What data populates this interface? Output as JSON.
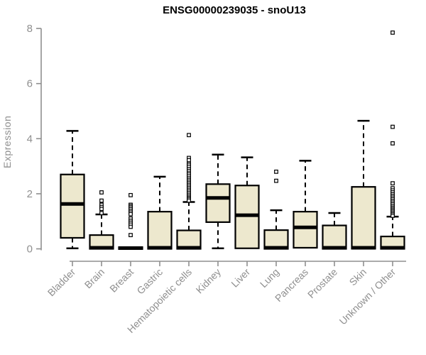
{
  "figure": {
    "title": "ENSG00000239035 - snoU13",
    "y_axis_label": "Expression"
  },
  "chart_data": {
    "type": "boxplot",
    "title": "ENSG00000239035 - snoU13",
    "xlabel": "",
    "ylabel": "Expression",
    "ylim": [
      0,
      8
    ],
    "y_ticks": [
      0,
      2,
      4,
      6,
      8
    ],
    "grid": false,
    "legend": "none",
    "box_fill_color": "#EDE8CE",
    "box_border_color": "#000000",
    "axis_color": "#8F8F8F",
    "categories": [
      "Bladder",
      "Brain",
      "Breast",
      "Gastric",
      "Hematopoietic cells",
      "Kidney",
      "Liver",
      "Lung",
      "Pancreas",
      "Prostate",
      "Skin",
      "Unknown / Other"
    ],
    "series": [
      {
        "name": "Bladder",
        "whisker_low": 0.02,
        "q1": 0.4,
        "median": 1.63,
        "q3": 2.7,
        "whisker_high": 4.28,
        "outliers": []
      },
      {
        "name": "Brain",
        "whisker_low": 0.0,
        "q1": 0.0,
        "median": 0.04,
        "q3": 0.5,
        "whisker_high": 1.25,
        "outliers": [
          2.05,
          1.75,
          1.6,
          1.52,
          1.45,
          1.3
        ]
      },
      {
        "name": "Breast",
        "whisker_low": 0.0,
        "q1": 0.0,
        "median": 0.03,
        "q3": 0.06,
        "whisker_high": 0.1,
        "outliers": [
          1.95,
          1.6,
          1.55,
          1.5,
          1.44,
          1.38,
          1.32,
          1.26,
          1.1,
          1.02,
          0.95,
          0.88,
          0.8,
          0.5
        ]
      },
      {
        "name": "Gastric",
        "whisker_low": 0.0,
        "q1": 0.0,
        "median": 0.04,
        "q3": 1.35,
        "whisker_high": 2.62,
        "outliers": []
      },
      {
        "name": "Hematopoietic cells",
        "whisker_low": 0.0,
        "q1": 0.0,
        "median": 0.04,
        "q3": 0.67,
        "whisker_high": 1.7,
        "outliers": [
          4.13,
          3.3,
          3.22,
          3.1,
          3.05,
          2.98,
          2.9,
          2.83,
          2.76,
          2.7,
          2.63,
          2.56,
          2.5,
          2.44,
          2.38,
          2.32,
          2.26,
          2.2,
          2.14,
          2.08,
          2.02,
          1.96,
          1.9,
          1.85,
          1.8,
          1.75
        ]
      },
      {
        "name": "Kidney",
        "whisker_low": 0.02,
        "q1": 0.97,
        "median": 1.85,
        "q3": 2.35,
        "whisker_high": 3.42,
        "outliers": []
      },
      {
        "name": "Liver",
        "whisker_low": 0.0,
        "q1": 0.02,
        "median": 1.22,
        "q3": 2.3,
        "whisker_high": 3.32,
        "outliers": []
      },
      {
        "name": "Lung",
        "whisker_low": 0.0,
        "q1": 0.0,
        "median": 0.04,
        "q3": 0.68,
        "whisker_high": 1.4,
        "outliers": [
          2.8,
          2.47
        ]
      },
      {
        "name": "Pancreas",
        "whisker_low": 0.0,
        "q1": 0.04,
        "median": 0.78,
        "q3": 1.35,
        "whisker_high": 3.2,
        "outliers": []
      },
      {
        "name": "Prostate",
        "whisker_low": 0.0,
        "q1": 0.0,
        "median": 0.04,
        "q3": 0.85,
        "whisker_high": 1.3,
        "outliers": []
      },
      {
        "name": "Skin",
        "whisker_low": 0.0,
        "q1": 0.02,
        "median": 0.04,
        "q3": 2.25,
        "whisker_high": 4.65,
        "outliers": []
      },
      {
        "name": "Unknown / Other",
        "whisker_low": 0.0,
        "q1": 0.0,
        "median": 0.04,
        "q3": 0.45,
        "whisker_high": 1.17,
        "outliers": [
          7.85,
          4.43,
          3.83,
          2.38,
          2.2,
          2.12,
          2.05,
          1.98,
          1.92,
          1.86,
          1.8,
          1.74,
          1.68,
          1.62,
          1.56,
          1.5,
          1.45,
          1.4,
          1.35,
          1.3,
          1.25,
          1.2
        ]
      }
    ]
  }
}
